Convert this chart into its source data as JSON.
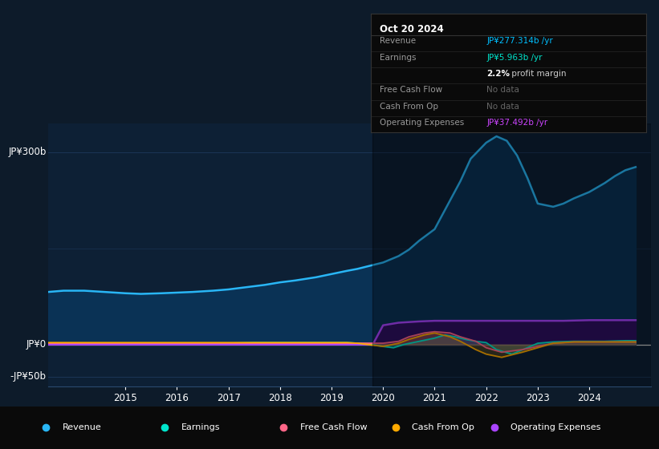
{
  "background_color": "#0d1b2a",
  "plot_bg_color": "#0d1b2a",
  "chart_bg_color": "#0d2035",
  "grid_color": "#1e3a5f",
  "title_box": {
    "date": "Oct 20 2024",
    "rows": [
      {
        "label": "Revenue",
        "value": "JP¥277.314b /yr",
        "value_color": "#00bfff"
      },
      {
        "label": "Earnings",
        "value": "JP¥5.963b /yr",
        "value_color": "#00e5cc"
      },
      {
        "label": "",
        "value": "2.2% profit margin",
        "value_color": "#cccccc",
        "bold_part": "2.2%"
      },
      {
        "label": "Free Cash Flow",
        "value": "No data",
        "value_color": "#666666"
      },
      {
        "label": "Cash From Op",
        "value": "No data",
        "value_color": "#666666"
      },
      {
        "label": "Operating Expenses",
        "value": "JP¥37.492b /yr",
        "value_color": "#cc44ff"
      }
    ]
  },
  "ylabel_300": "JP¥300b",
  "ylabel_0": "JP¥0",
  "ylabel_neg50": "-JP¥50b",
  "ylim": [
    -65,
    345
  ],
  "xlim_start": 2013.5,
  "xlim_end": 2025.2,
  "xticks": [
    2015,
    2016,
    2017,
    2018,
    2019,
    2020,
    2021,
    2022,
    2023,
    2024
  ],
  "series": {
    "revenue": {
      "color": "#29b6f6",
      "fill_color": "#0a3255",
      "label": "Revenue",
      "x": [
        2013.5,
        2013.8,
        2014.2,
        2014.6,
        2015.0,
        2015.3,
        2015.7,
        2016.0,
        2016.3,
        2016.7,
        2017.0,
        2017.3,
        2017.7,
        2018.0,
        2018.3,
        2018.7,
        2019.0,
        2019.3,
        2019.5,
        2019.7,
        2020.0,
        2020.3,
        2020.5,
        2020.7,
        2021.0,
        2021.2,
        2021.5,
        2021.7,
        2022.0,
        2022.2,
        2022.4,
        2022.6,
        2022.8,
        2023.0,
        2023.3,
        2023.5,
        2023.7,
        2024.0,
        2024.3,
        2024.5,
        2024.7,
        2024.9
      ],
      "y": [
        82,
        84,
        84,
        82,
        80,
        79,
        80,
        81,
        82,
        84,
        86,
        89,
        93,
        97,
        100,
        105,
        110,
        115,
        118,
        122,
        128,
        138,
        148,
        162,
        180,
        210,
        255,
        290,
        315,
        325,
        318,
        295,
        260,
        220,
        215,
        220,
        228,
        238,
        252,
        263,
        272,
        277
      ]
    },
    "earnings": {
      "color": "#00e5cc",
      "label": "Earnings",
      "x": [
        2013.5,
        2014.0,
        2014.5,
        2015.0,
        2015.5,
        2016.0,
        2016.5,
        2017.0,
        2017.5,
        2018.0,
        2018.5,
        2019.0,
        2019.3,
        2019.5,
        2019.7,
        2020.0,
        2020.2,
        2020.4,
        2020.7,
        2021.0,
        2021.2,
        2021.4,
        2021.6,
        2021.8,
        2022.0,
        2022.2,
        2022.5,
        2022.8,
        2023.0,
        2023.3,
        2023.7,
        2024.0,
        2024.3,
        2024.7,
        2024.9
      ],
      "y": [
        2,
        2,
        2,
        2,
        2,
        2,
        2,
        2,
        3,
        3,
        3,
        3,
        3,
        2,
        1,
        -3,
        -5,
        0,
        5,
        10,
        15,
        12,
        8,
        5,
        3,
        -8,
        -15,
        -5,
        2,
        4,
        5,
        5,
        5,
        6,
        6
      ]
    },
    "free_cash_flow": {
      "color": "#ff6688",
      "label": "Free Cash Flow",
      "x": [
        2013.5,
        2014.0,
        2014.5,
        2015.0,
        2015.5,
        2016.0,
        2016.5,
        2017.0,
        2017.5,
        2018.0,
        2018.5,
        2019.0,
        2019.5,
        2020.0,
        2020.3,
        2020.5,
        2020.8,
        2021.0,
        2021.3,
        2021.5,
        2021.8,
        2022.0,
        2022.3,
        2022.7,
        2023.0,
        2023.3,
        2023.7,
        2024.0,
        2024.5,
        2024.9
      ],
      "y": [
        2,
        2,
        2,
        2,
        2,
        2,
        2,
        2,
        2,
        2,
        2,
        2,
        2,
        2,
        5,
        12,
        18,
        20,
        18,
        12,
        5,
        -5,
        -12,
        -8,
        -3,
        2,
        4,
        4,
        4,
        4
      ]
    },
    "cash_from_op": {
      "color": "#ffaa00",
      "label": "Cash From Op",
      "x": [
        2013.5,
        2014.0,
        2014.5,
        2015.0,
        2015.5,
        2016.0,
        2016.5,
        2017.0,
        2017.5,
        2018.0,
        2018.5,
        2019.0,
        2019.3,
        2019.5,
        2019.7,
        2020.0,
        2020.3,
        2020.5,
        2020.8,
        2021.0,
        2021.3,
        2021.5,
        2021.8,
        2022.0,
        2022.3,
        2022.7,
        2023.0,
        2023.3,
        2023.7,
        2024.0,
        2024.5,
        2024.9
      ],
      "y": [
        3,
        3,
        3,
        3,
        3,
        3,
        3,
        3,
        3,
        3,
        3,
        3,
        3,
        2,
        0,
        -3,
        2,
        8,
        15,
        18,
        12,
        5,
        -8,
        -15,
        -20,
        -12,
        -5,
        2,
        4,
        4,
        4,
        4
      ]
    },
    "operating_expenses": {
      "color": "#aa44ff",
      "fill_color": "#2d1060",
      "label": "Operating Expenses",
      "x": [
        2013.5,
        2014.0,
        2015.0,
        2016.0,
        2017.0,
        2018.0,
        2019.0,
        2019.5,
        2019.8,
        2020.0,
        2020.3,
        2020.7,
        2021.0,
        2021.5,
        2022.0,
        2022.5,
        2023.0,
        2023.5,
        2024.0,
        2024.5,
        2024.9
      ],
      "y": [
        0,
        0,
        0,
        0,
        0,
        0,
        0,
        0,
        0,
        30,
        34,
        36,
        37,
        37,
        37,
        37,
        37,
        37,
        38,
        38,
        38
      ]
    }
  },
  "legend": [
    {
      "label": "Revenue",
      "color": "#29b6f6"
    },
    {
      "label": "Earnings",
      "color": "#00e5cc"
    },
    {
      "label": "Free Cash Flow",
      "color": "#ff6688"
    },
    {
      "label": "Cash From Op",
      "color": "#ffaa00"
    },
    {
      "label": "Operating Expenses",
      "color": "#aa44ff"
    }
  ],
  "dark_overlay_start": 2019.8,
  "dark_overlay_end": 2025.2,
  "dark_overlay_alpha": 0.35
}
